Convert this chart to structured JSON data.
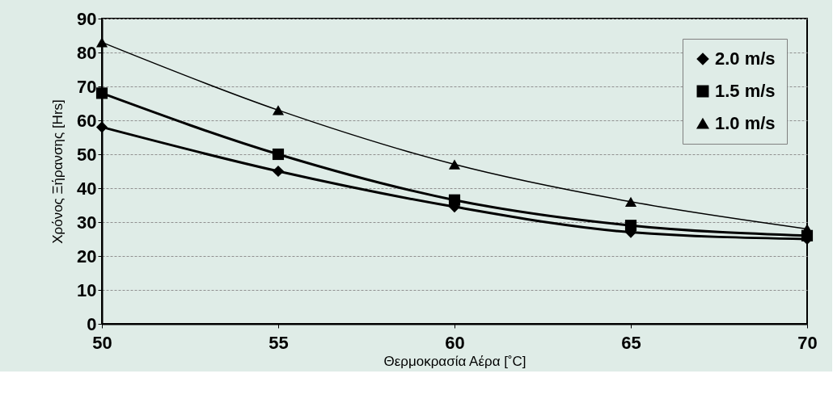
{
  "chart_data": {
    "type": "line",
    "xlabel": "Θερμοκρασία Αέρα [˚C]",
    "ylabel": "Χρόνος Ξήρανσης [Hrs]",
    "x": [
      50,
      55,
      60,
      65,
      70
    ],
    "xlim": [
      50,
      70
    ],
    "xticks": [
      50,
      55,
      60,
      65,
      70
    ],
    "ylim": [
      0,
      90
    ],
    "yticks": [
      0,
      10,
      20,
      30,
      40,
      50,
      60,
      70,
      80,
      90
    ],
    "grid": "y",
    "legend": "top right",
    "line_style": "solid",
    "series": [
      {
        "name": "2.0 m/s",
        "color": "#000000",
        "marker": "diamond",
        "values": [
          58,
          45,
          34.5,
          27,
          25
        ]
      },
      {
        "name": "1.5 m/s",
        "color": "#000000",
        "marker": "square",
        "values": [
          68,
          50,
          36.5,
          29,
          26
        ]
      },
      {
        "name": "1.0 m/s",
        "color": "#000000",
        "marker": "triangle",
        "values": [
          83,
          63,
          47,
          36,
          28
        ]
      }
    ]
  }
}
